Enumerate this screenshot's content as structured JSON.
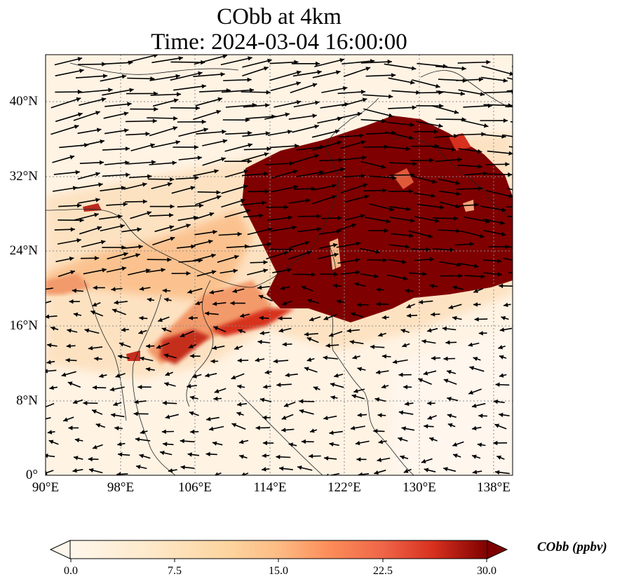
{
  "title": {
    "line1": "CObb at 4km",
    "line2": "Time: 2024-03-04 16:00:00"
  },
  "axes": {
    "lat_ticks": [
      "40°N",
      "32°N",
      "24°N",
      "16°N",
      "8°N",
      "0°"
    ],
    "lon_ticks": [
      "90°E",
      "98°E",
      "106°E",
      "114°E",
      "122°E",
      "130°E",
      "138°E"
    ],
    "lat_values": [
      40,
      32,
      24,
      16,
      8,
      0
    ],
    "lon_values": [
      90,
      98,
      106,
      114,
      122,
      130,
      138
    ],
    "lon_range": [
      90,
      140
    ],
    "lat_range": [
      0,
      45
    ],
    "gridlines": "dotted"
  },
  "colorbar": {
    "label": "CObb (ppbv)",
    "ticks": [
      "0.0",
      "7.5",
      "15.0",
      "22.5",
      "30.0"
    ],
    "range": [
      0,
      30
    ],
    "colormap": "OrRd",
    "extend": "both",
    "colors": [
      "#fff7ec",
      "#fdd49e",
      "#fc8d59",
      "#d7301f",
      "#7f0000"
    ]
  },
  "map_colors": {
    "high": "#7f0000",
    "mid": "#d7301f",
    "low": "#fdd49e",
    "background": "#fff3e4",
    "coast": "#222222",
    "arrow": "#000000"
  }
}
